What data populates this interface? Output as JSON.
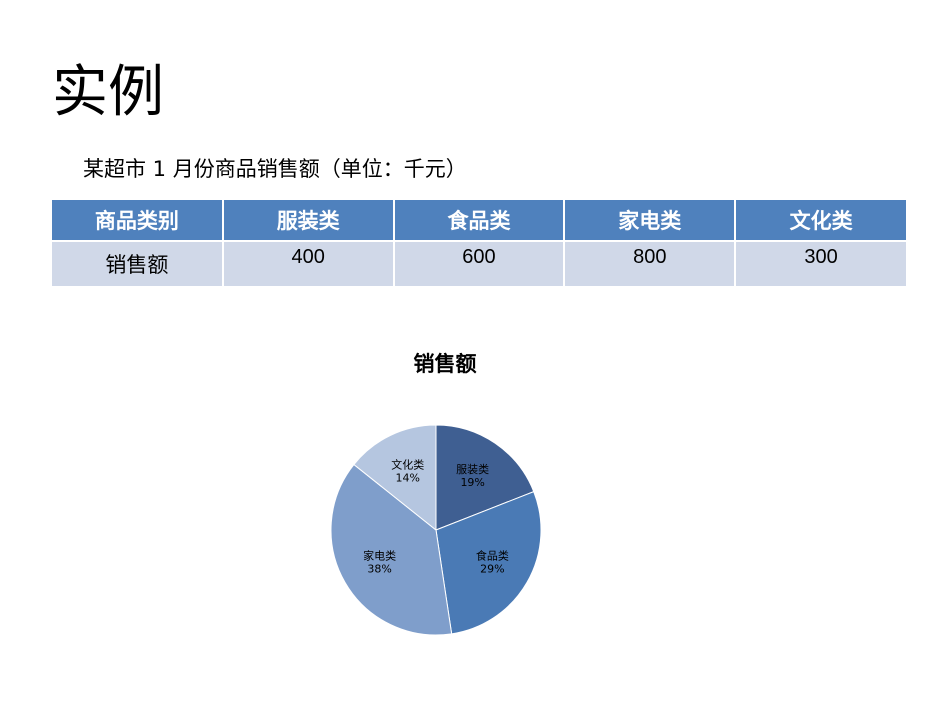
{
  "slide": {
    "title": "实例",
    "subtitle": "某超市 1 月份商品销售额（单位：千元）"
  },
  "table": {
    "headers": [
      "商品类别",
      "服装类",
      "食品类",
      "家电类",
      "文化类"
    ],
    "row_label": "销售额",
    "values": [
      "400",
      "600",
      "800",
      "300"
    ]
  },
  "chart_data": {
    "type": "pie",
    "title": "销售额",
    "categories": [
      "服装类",
      "食品类",
      "家电类",
      "文化类"
    ],
    "values": [
      400,
      600,
      800,
      300
    ],
    "percent_labels": [
      "19%",
      "29%",
      "38%",
      "14%"
    ],
    "colors": [
      "#3f5f92",
      "#4a7ab5",
      "#7f9ecb",
      "#b5c6e0"
    ]
  }
}
